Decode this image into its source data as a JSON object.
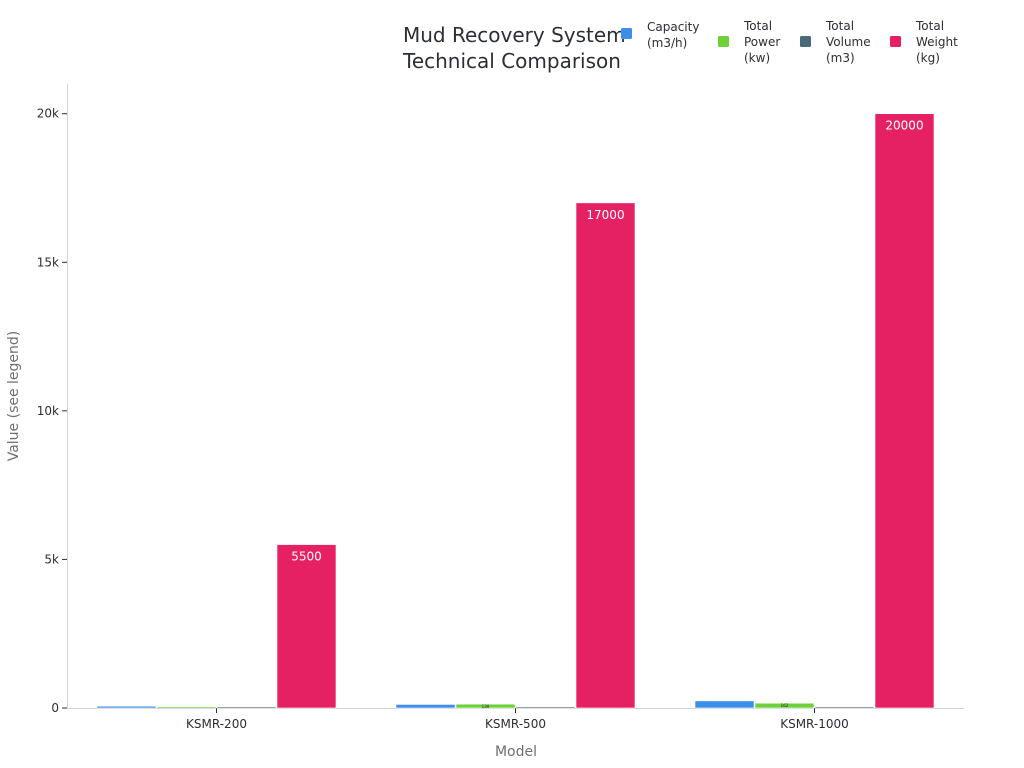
{
  "chart_data": {
    "type": "bar",
    "title": [
      "Mud Recovery System",
      "Technical Comparison"
    ],
    "xlabel": "Model",
    "ylabel": "Value (see legend)",
    "categories": [
      "KSMR-200",
      "KSMR-500",
      "KSMR-1000"
    ],
    "ylim": [
      0,
      21000
    ],
    "yticks": [
      0,
      5000,
      10000,
      15000,
      20000
    ],
    "ytick_labels": [
      "0",
      "5k",
      "10k",
      "15k",
      "20k"
    ],
    "legend_position": "top-right",
    "grid": false,
    "series": [
      {
        "name": [
          "Capacity",
          "(m3/h)"
        ],
        "color": "#3b8fe8",
        "values": [
          60,
          120,
          240
        ],
        "labels": [
          "",
          "",
          ""
        ]
      },
      {
        "name": [
          "Total",
          "Power",
          "(kw)"
        ],
        "color": "#6dd13a",
        "values": [
          45,
          130,
          162
        ],
        "labels": [
          "",
          "130",
          "162"
        ]
      },
      {
        "name": [
          "Total",
          "Volume",
          "(m3)"
        ],
        "color": "#4a6a78",
        "values": [
          4,
          10,
          20
        ],
        "labels": [
          "",
          "",
          ""
        ]
      },
      {
        "name": [
          "Total",
          "Weight",
          "(kg)"
        ],
        "color": "#e62163",
        "values": [
          5500,
          17000,
          20000
        ],
        "labels": [
          "5500",
          "17000",
          "20000"
        ]
      }
    ]
  }
}
